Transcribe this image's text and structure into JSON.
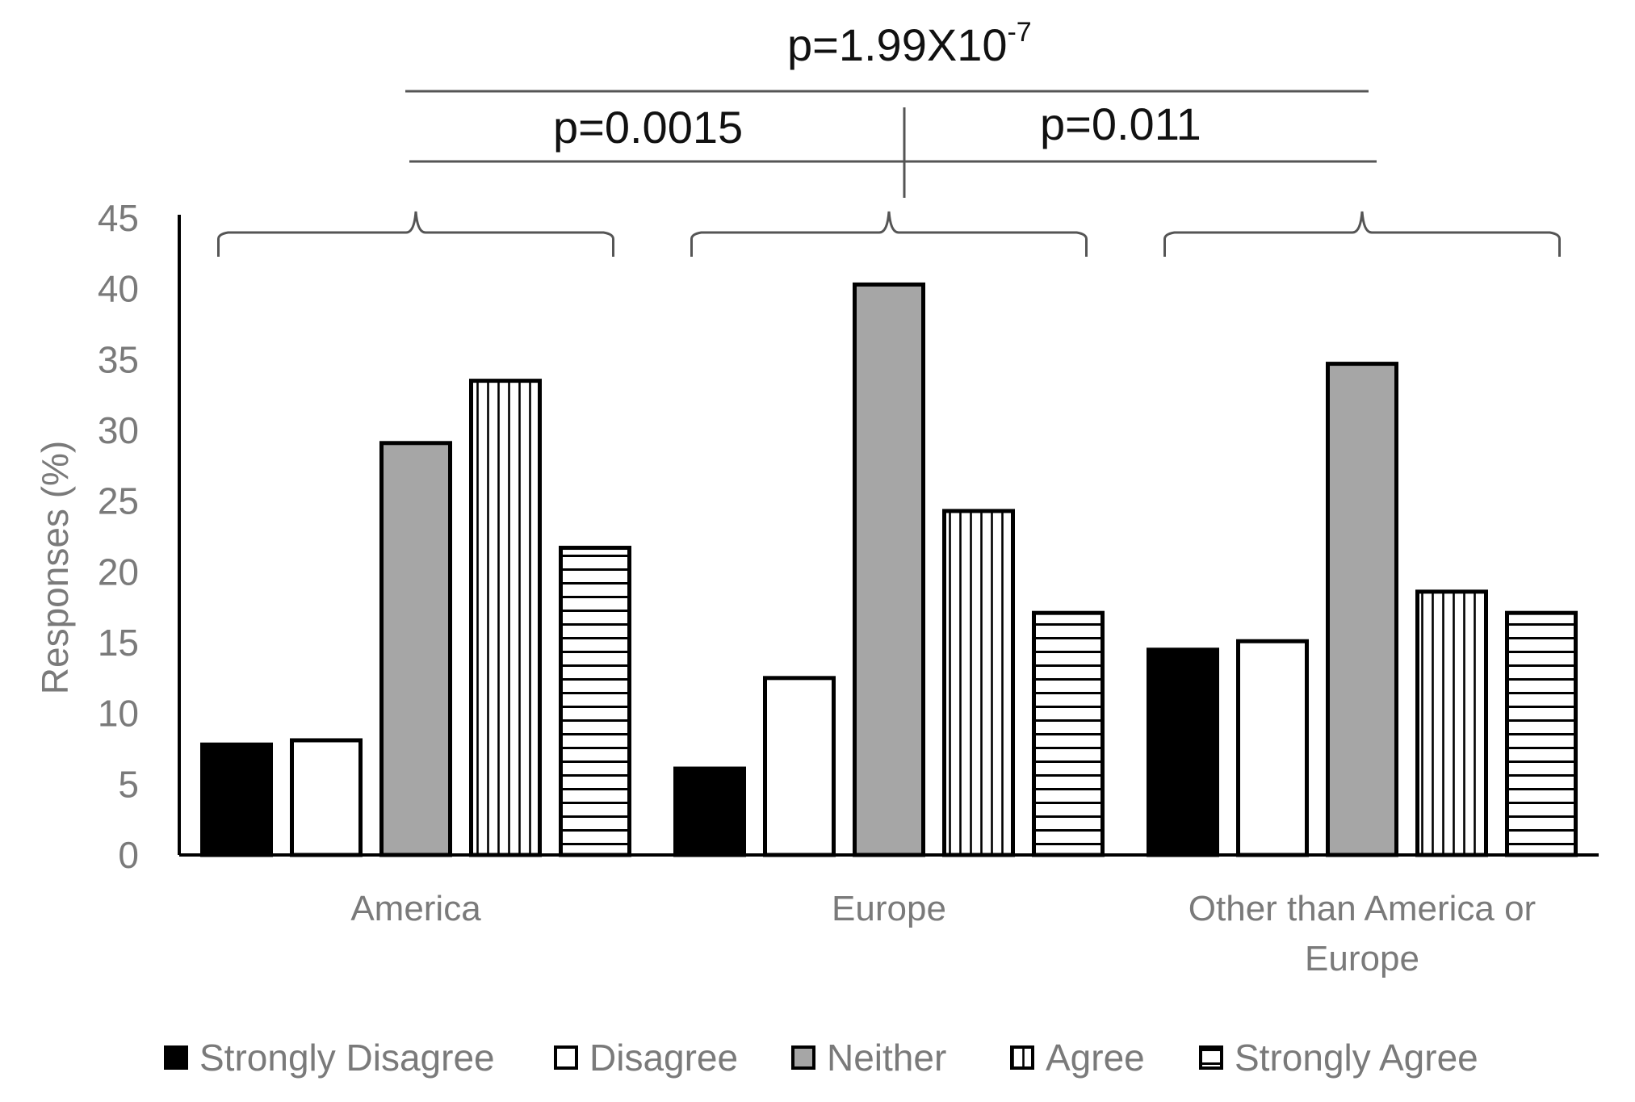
{
  "chart_data": {
    "type": "bar",
    "title": "",
    "xlabel": "",
    "ylabel": "Responses (%)",
    "ylim": [
      0,
      45
    ],
    "yticks": [
      "0",
      "5",
      "10",
      "15",
      "20",
      "25",
      "30",
      "35",
      "40",
      "45"
    ],
    "categories": [
      "America",
      "Europe",
      "Other than America or Europe"
    ],
    "series": [
      {
        "name": "Strongly Disagree",
        "pattern": "solid-black",
        "values": [
          7.8,
          6.1,
          14.5
        ]
      },
      {
        "name": "Disagree",
        "pattern": "white",
        "values": [
          8.1,
          12.5,
          15.1
        ]
      },
      {
        "name": "Neither",
        "pattern": "solid-gray",
        "values": [
          29.1,
          40.3,
          34.7
        ]
      },
      {
        "name": "Agree",
        "pattern": "vertical-lines",
        "values": [
          33.5,
          24.3,
          18.6
        ]
      },
      {
        "name": "Strongly Agree",
        "pattern": "horizontal-lines",
        "values": [
          21.7,
          17.1,
          17.1
        ]
      }
    ],
    "legend_position": "bottom",
    "annotations": {
      "p_top_base": "p=1.99X10",
      "p_top_exp": "-7",
      "p_left": "p=0.0015",
      "p_right": "p=0.011"
    }
  }
}
